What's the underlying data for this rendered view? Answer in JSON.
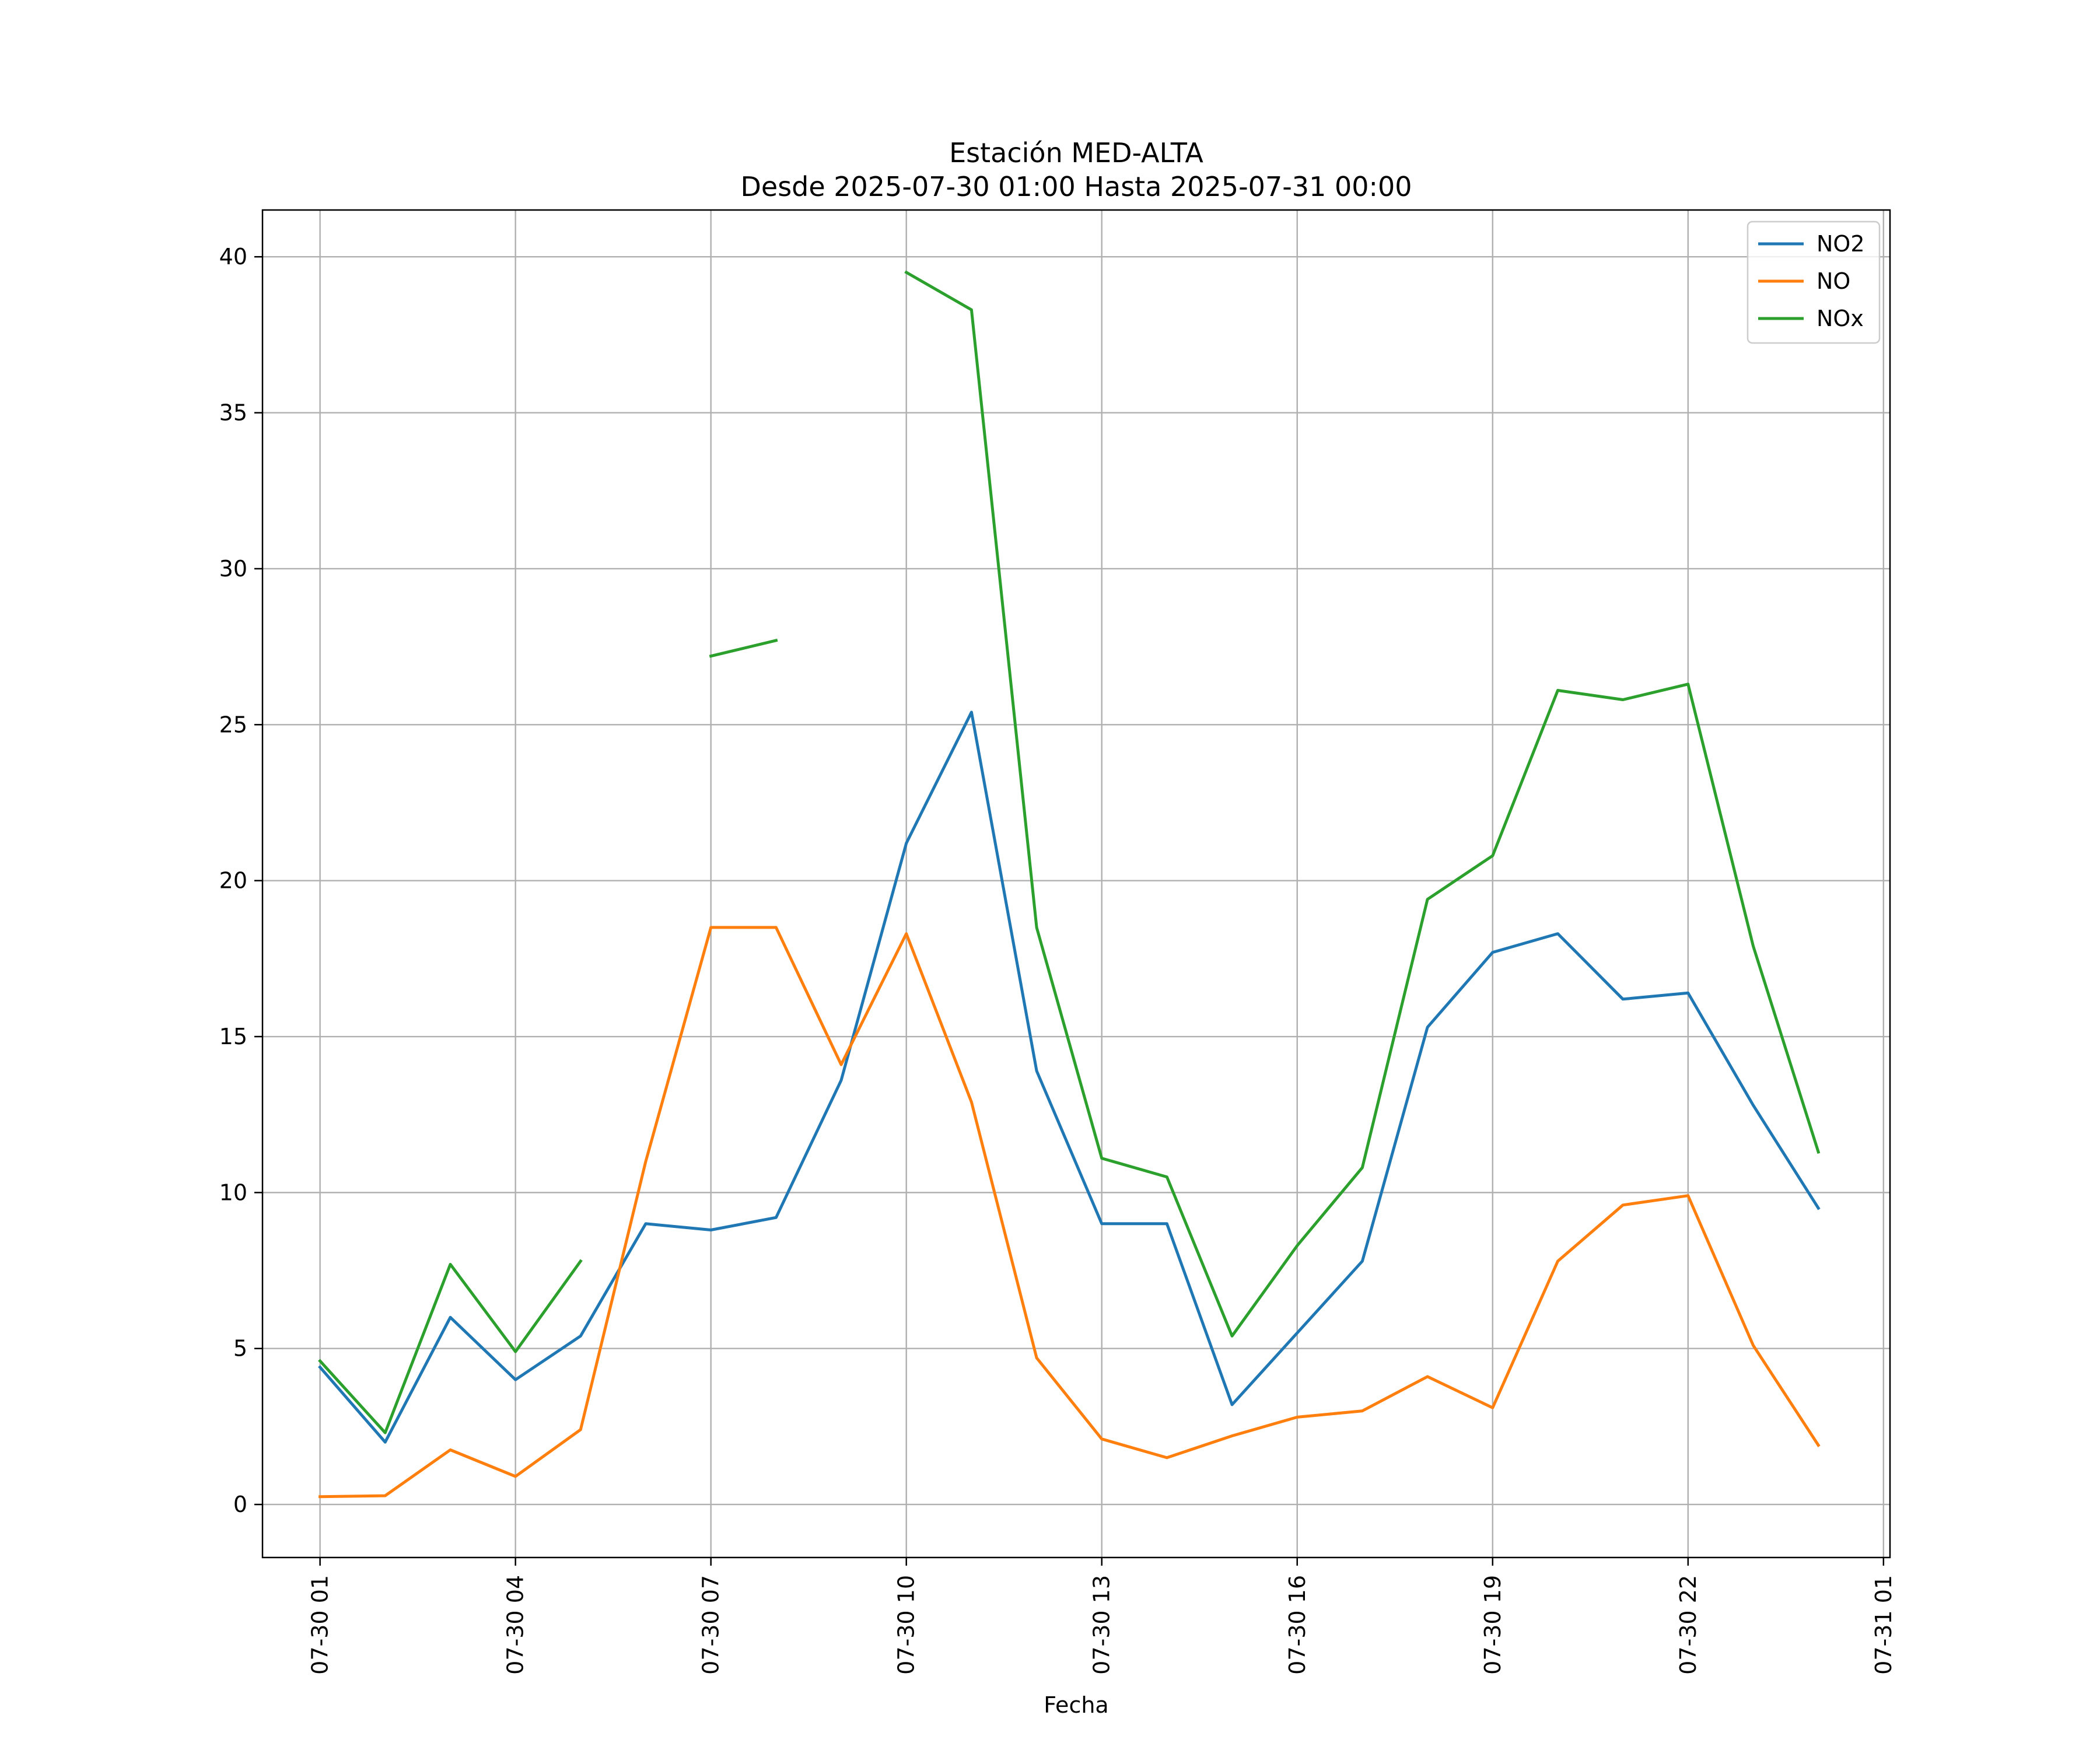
{
  "chart_data": {
    "type": "line",
    "title": "Estación MED-ALTA",
    "subtitle": "Desde 2025-07-30 01:00 Hasta 2025-07-31 00:00",
    "xlabel": "Fecha",
    "ylabel": "",
    "x": [
      "2025-07-30 01:00",
      "2025-07-30 02:00",
      "2025-07-30 03:00",
      "2025-07-30 04:00",
      "2025-07-30 05:00",
      "2025-07-30 06:00",
      "2025-07-30 07:00",
      "2025-07-30 08:00",
      "2025-07-30 09:00",
      "2025-07-30 10:00",
      "2025-07-30 11:00",
      "2025-07-30 12:00",
      "2025-07-30 13:00",
      "2025-07-30 14:00",
      "2025-07-30 15:00",
      "2025-07-30 16:00",
      "2025-07-30 17:00",
      "2025-07-30 18:00",
      "2025-07-30 19:00",
      "2025-07-30 20:00",
      "2025-07-30 21:00",
      "2025-07-30 22:00",
      "2025-07-30 23:00",
      "2025-07-31 00:00"
    ],
    "xticks": [
      "07-30 01",
      "07-30 04",
      "07-30 07",
      "07-30 10",
      "07-30 13",
      "07-30 16",
      "07-30 19",
      "07-30 22",
      "07-31 01"
    ],
    "xlim": [
      "2025-07-30 00:07",
      "2025-07-31 01:06"
    ],
    "yticks": [
      "0",
      "5",
      "10",
      "15",
      "20",
      "25",
      "30",
      "35",
      "40"
    ],
    "ylim": [
      -1.7,
      41.5
    ],
    "grid": true,
    "legend": "top-right",
    "series": [
      {
        "name": "NO2",
        "color": "#1f77b4",
        "values": [
          4.4,
          2.0,
          6.0,
          4.0,
          5.4,
          9.0,
          8.8,
          9.2,
          13.6,
          21.2,
          25.4,
          13.9,
          9.0,
          9.0,
          3.2,
          5.5,
          7.8,
          15.3,
          17.7,
          18.3,
          16.2,
          16.4,
          12.8,
          9.5
        ]
      },
      {
        "name": "NO",
        "color": "#ff7f0e",
        "values": [
          0.25,
          0.28,
          1.75,
          0.9,
          2.4,
          11.0,
          18.5,
          18.5,
          14.1,
          18.3,
          12.9,
          4.7,
          2.1,
          1.5,
          2.2,
          2.8,
          3.0,
          4.1,
          3.1,
          7.8,
          9.6,
          9.9,
          5.1,
          1.9
        ]
      },
      {
        "name": "NOx",
        "color": "#2ca02c",
        "values": [
          4.6,
          2.3,
          7.7,
          4.9,
          7.8,
          null,
          27.2,
          27.7,
          null,
          39.5,
          38.3,
          18.5,
          11.1,
          10.5,
          5.4,
          8.3,
          10.8,
          19.4,
          20.8,
          26.1,
          25.8,
          26.3,
          17.9,
          11.3
        ]
      }
    ]
  }
}
